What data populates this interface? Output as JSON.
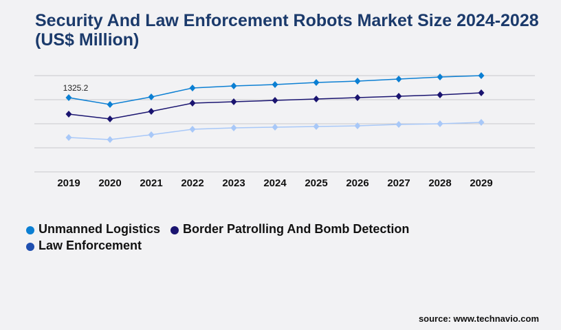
{
  "title": "Security And Law Enforcement Robots Market Size 2024-2028 (US$ Million)",
  "source": "source: www.technavio.com",
  "chart_data": {
    "type": "line",
    "title": "Security And Law Enforcement Robots Market Size 2024-2028 (US$ Million)",
    "xlabel": "",
    "ylabel": "",
    "categories": [
      "2019",
      "2020",
      "2021",
      "2022",
      "2023",
      "2024",
      "2025",
      "2026",
      "2027",
      "2028",
      "2029"
    ],
    "ylim": [
      0,
      1718
    ],
    "grid": true,
    "legend_position": "bottom-left",
    "annotations": [
      {
        "label": "1325.2",
        "category": "2019"
      }
    ],
    "series": [
      {
        "name": "Unmanned Logistics",
        "color": "#0b7fd3",
        "legend_color": "#0b7fd3",
        "values": [
          1325.2,
          1202,
          1337,
          1497,
          1534,
          1559,
          1595,
          1620,
          1657,
          1693,
          1718
        ]
      },
      {
        "name": "Border Patrolling And Bomb Detection",
        "color": "#1a1470",
        "legend_color": "#1a1470",
        "values": [
          1031,
          945,
          1080,
          1227,
          1252,
          1276,
          1301,
          1325,
          1350,
          1374,
          1411
        ]
      },
      {
        "name": "Law Enforcement",
        "color": "#a8c8f8",
        "legend_color": "#1f4fb0",
        "values": [
          613,
          577,
          663,
          761,
          785,
          798,
          810,
          822,
          847,
          859,
          883
        ]
      }
    ]
  }
}
